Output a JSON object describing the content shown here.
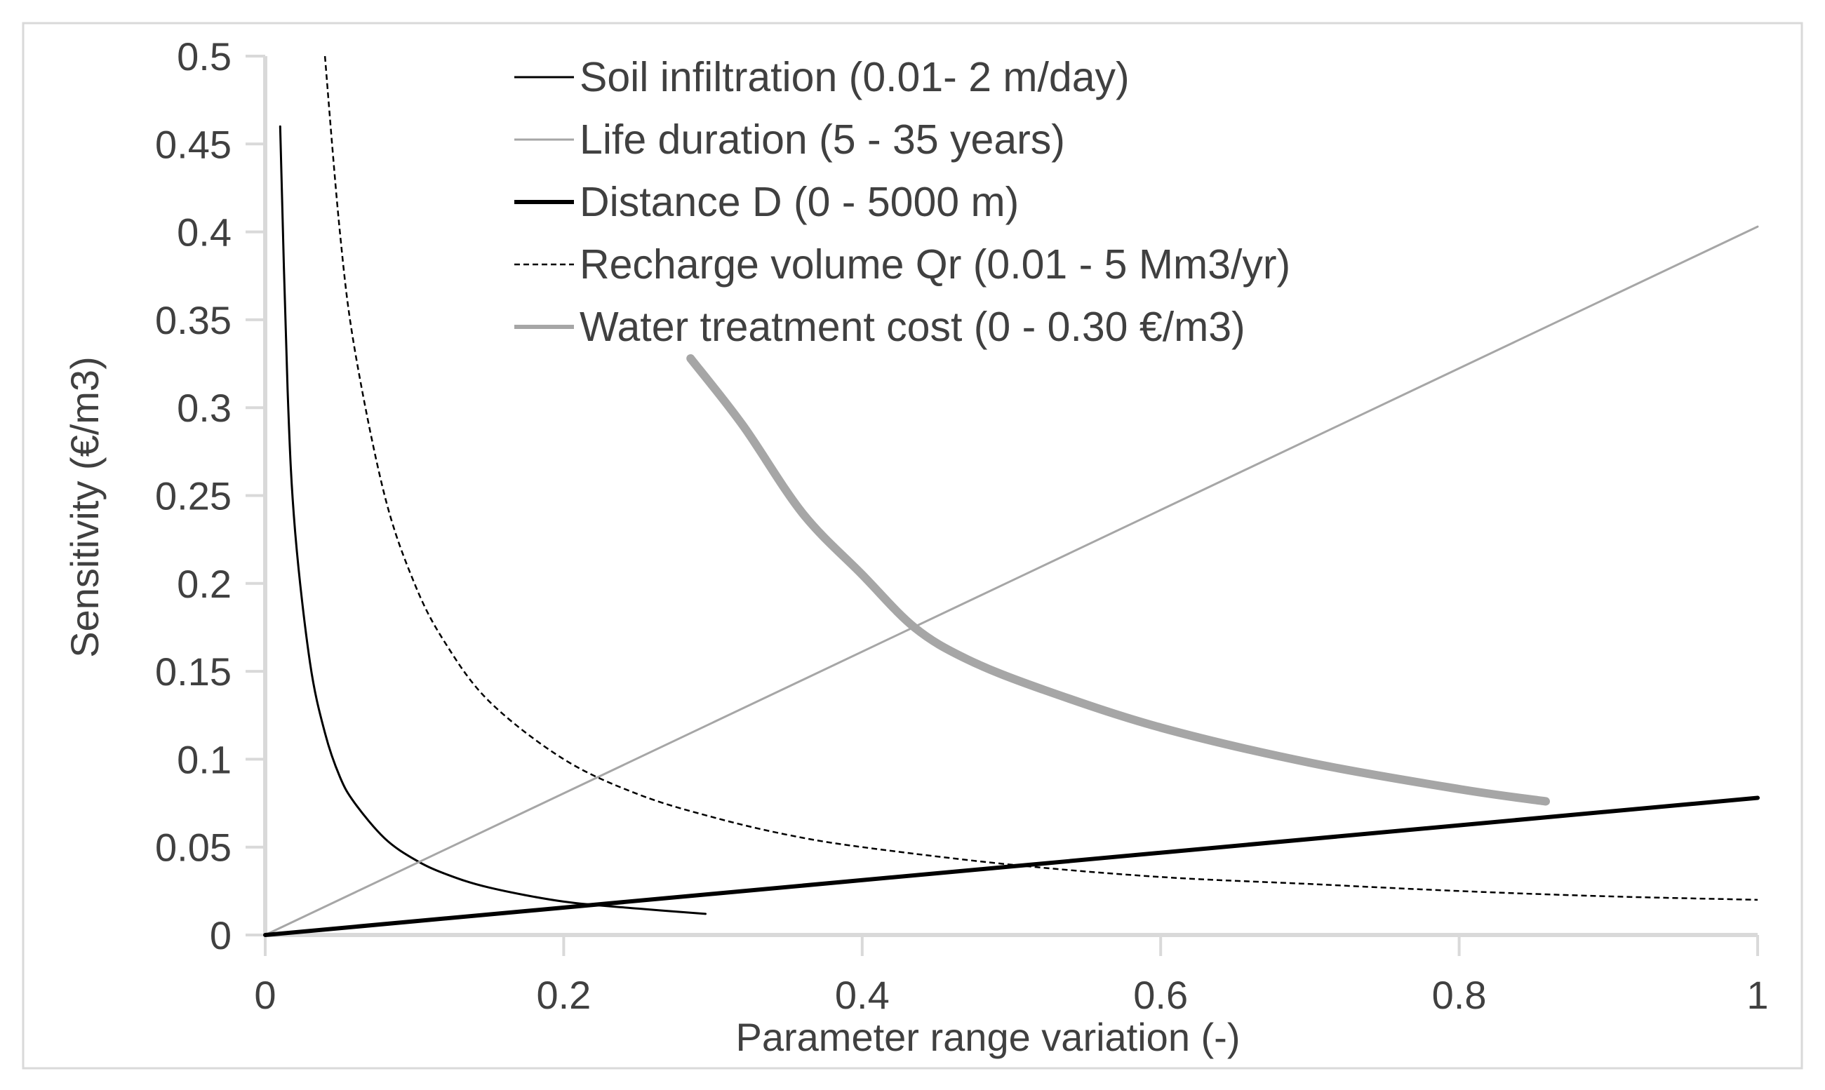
{
  "chart_data": {
    "type": "line",
    "title": "",
    "xlabel": "Parameter range variation (-)",
    "ylabel": "Sensitivity (€/m3)",
    "xlim": [
      0,
      1
    ],
    "ylim": [
      0,
      0.5
    ],
    "x_ticks": [
      0,
      0.2,
      0.4,
      0.6,
      0.8,
      1
    ],
    "x_tick_labels": [
      "0",
      "0.2",
      "0.4",
      "0.6",
      "0.8",
      "1"
    ],
    "y_ticks": [
      0,
      0.05,
      0.1,
      0.15,
      0.2,
      0.25,
      0.3,
      0.35,
      0.4,
      0.45,
      0.5
    ],
    "y_tick_labels": [
      "0",
      "0.05",
      "0.1",
      "0.15",
      "0.2",
      "0.25",
      "0.3",
      "0.35",
      "0.4",
      "0.45",
      "0.5"
    ],
    "grid": false,
    "legend_position": "top-center",
    "series": [
      {
        "name": "Soil infiltration (0.01- 2 m/day)",
        "color": "#000000",
        "style": "solid-thin",
        "points": [
          [
            0.01,
            0.46
          ],
          [
            0.015,
            0.31
          ],
          [
            0.02,
            0.23
          ],
          [
            0.03,
            0.155
          ],
          [
            0.04,
            0.115
          ],
          [
            0.05,
            0.09
          ],
          [
            0.06,
            0.075
          ],
          [
            0.08,
            0.055
          ],
          [
            0.1,
            0.043
          ],
          [
            0.12,
            0.035
          ],
          [
            0.15,
            0.027
          ],
          [
            0.2,
            0.019
          ],
          [
            0.25,
            0.015
          ],
          [
            0.295,
            0.012
          ]
        ]
      },
      {
        "name": "Life duration (5 - 35 years)",
        "color": "#a6a6a6",
        "style": "solid-thin",
        "points": [
          [
            0,
            0
          ],
          [
            1,
            0.403
          ]
        ]
      },
      {
        "name": "Distance D (0 - 5000 m)",
        "color": "#000000",
        "style": "solid-thick",
        "points": [
          [
            0,
            0
          ],
          [
            1,
            0.078
          ]
        ]
      },
      {
        "name": "Recharge volume Qr (0.01 - 5 Mm3/yr)",
        "color": "#000000",
        "style": "dashed",
        "points": [
          [
            0.04,
            0.5
          ],
          [
            0.05,
            0.4
          ],
          [
            0.06,
            0.333
          ],
          [
            0.08,
            0.25
          ],
          [
            0.1,
            0.2
          ],
          [
            0.12,
            0.167
          ],
          [
            0.15,
            0.133
          ],
          [
            0.2,
            0.1
          ],
          [
            0.25,
            0.08
          ],
          [
            0.3,
            0.067
          ],
          [
            0.35,
            0.057
          ],
          [
            0.4,
            0.05
          ],
          [
            0.5,
            0.04
          ],
          [
            0.6,
            0.033
          ],
          [
            0.7,
            0.029
          ],
          [
            0.8,
            0.025
          ],
          [
            0.9,
            0.022
          ],
          [
            1,
            0.02
          ]
        ]
      },
      {
        "name": "Water treatment cost (0 - 0.30 €/m3)",
        "color": "#a6a6a6",
        "style": "solid-heavy",
        "points": [
          [
            0.285,
            0.328
          ],
          [
            0.32,
            0.29
          ],
          [
            0.36,
            0.24
          ],
          [
            0.4,
            0.205
          ],
          [
            0.435,
            0.175
          ],
          [
            0.47,
            0.157
          ],
          [
            0.52,
            0.14
          ],
          [
            0.6,
            0.118
          ],
          [
            0.7,
            0.098
          ],
          [
            0.8,
            0.083
          ],
          [
            0.858,
            0.076
          ]
        ]
      }
    ]
  }
}
